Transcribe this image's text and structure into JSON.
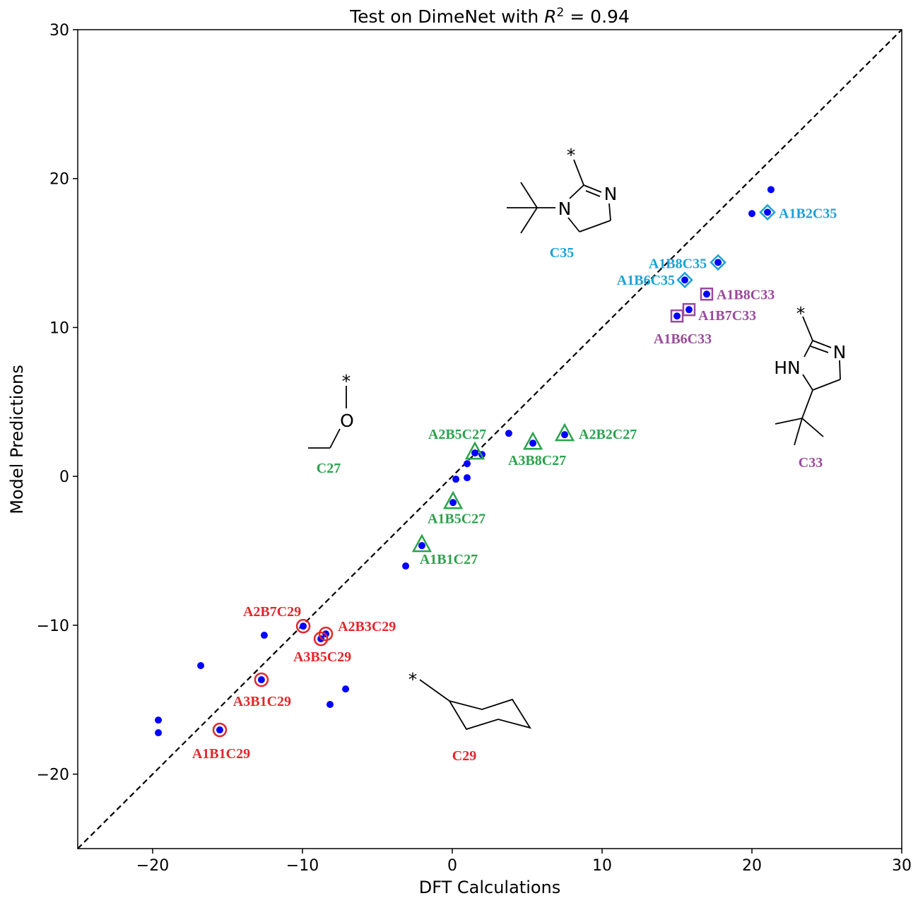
{
  "chart_data": {
    "type": "scatter",
    "title": "Test on DimeNet with R² =  0.94",
    "title_parts": {
      "prefix": "Test on DimeNet with ",
      "var": "R",
      "sup": "2",
      "suffix": " =  0.94"
    },
    "xlabel": "DFT Calculations",
    "ylabel": "Model Predictions",
    "xlim": [
      -25,
      30
    ],
    "ylim": [
      -25,
      30
    ],
    "xticks": [
      -20,
      -10,
      0,
      10,
      20,
      30
    ],
    "yticks": [
      -20,
      -10,
      0,
      10,
      20,
      30
    ],
    "grid": false,
    "reference_line": {
      "type": "y=x",
      "style": "dashed",
      "color": "#000000"
    },
    "point_color": "#0000ff",
    "points": [
      [
        21.27,
        19.26
      ],
      [
        20.0,
        17.65
      ],
      [
        21.04,
        17.74
      ],
      [
        17.74,
        14.37
      ],
      [
        15.52,
        13.19
      ],
      [
        16.98,
        12.24
      ],
      [
        15.8,
        11.2
      ],
      [
        15.0,
        10.77
      ],
      [
        3.77,
        2.89
      ],
      [
        5.38,
        2.23
      ],
      [
        7.5,
        2.8
      ],
      [
        1.51,
        1.57
      ],
      [
        1.98,
        1.47
      ],
      [
        0.99,
        0.85
      ],
      [
        0.99,
        -0.09
      ],
      [
        0.24,
        -0.19
      ],
      [
        0.05,
        -1.76
      ],
      [
        -2.03,
        -4.65
      ],
      [
        -3.11,
        -6.02
      ],
      [
        -12.55,
        -10.67
      ],
      [
        -9.95,
        -10.06
      ],
      [
        -8.44,
        -10.58
      ],
      [
        -8.77,
        -10.91
      ],
      [
        -7.12,
        -14.28
      ],
      [
        -8.16,
        -15.32
      ],
      [
        -12.74,
        -13.66
      ],
      [
        -16.79,
        -12.71
      ],
      [
        -19.62,
        -16.37
      ],
      [
        -19.62,
        -17.22
      ],
      [
        -15.52,
        -17.03
      ]
    ],
    "annotations": [
      {
        "text": "A1B2C35",
        "x": 21.04,
        "y": 17.74,
        "marker": "diamond",
        "color": "#1ba1d6"
      },
      {
        "text": "A1B8C35",
        "x": 17.74,
        "y": 14.37,
        "marker": "diamond",
        "color": "#1ba1d6"
      },
      {
        "text": "A1B6C35",
        "x": 15.52,
        "y": 13.19,
        "marker": "diamond",
        "color": "#1ba1d6"
      },
      {
        "text": "A1B8C33",
        "x": 16.98,
        "y": 12.24,
        "marker": "square",
        "color": "#9a4a9c"
      },
      {
        "text": "A1B7C33",
        "x": 15.8,
        "y": 11.2,
        "marker": "square",
        "color": "#9a4a9c"
      },
      {
        "text": "A1B6C33",
        "x": 15.0,
        "y": 10.77,
        "marker": "square",
        "color": "#9a4a9c"
      },
      {
        "text": "A2B5C27",
        "x": 1.51,
        "y": 1.57,
        "marker": "triangle",
        "color": "#2ba24c"
      },
      {
        "text": "A3B8C27",
        "x": 5.38,
        "y": 2.23,
        "marker": "triangle",
        "color": "#2ba24c"
      },
      {
        "text": "A2B2C27",
        "x": 7.5,
        "y": 2.8,
        "marker": "triangle",
        "color": "#2ba24c"
      },
      {
        "text": "A1B5C27",
        "x": 0.05,
        "y": -1.76,
        "marker": "triangle",
        "color": "#2ba24c"
      },
      {
        "text": "A1B1C27",
        "x": -2.03,
        "y": -4.65,
        "marker": "triangle",
        "color": "#2ba24c"
      },
      {
        "text": "A2B7C29",
        "x": -9.95,
        "y": -10.06,
        "marker": "circle",
        "color": "#e3262b"
      },
      {
        "text": "A2B3C29",
        "x": -8.44,
        "y": -10.58,
        "marker": "circle",
        "color": "#e3262b"
      },
      {
        "text": "A3B5C29",
        "x": -8.77,
        "y": -10.91,
        "marker": "circle",
        "color": "#e3262b"
      },
      {
        "text": "A3B1C29",
        "x": -12.74,
        "y": -13.66,
        "marker": "circle",
        "color": "#e3262b"
      },
      {
        "text": "A1B1C29",
        "x": -15.52,
        "y": -17.03,
        "marker": "circle",
        "color": "#e3262b"
      }
    ],
    "structures": {
      "c35": {
        "label": "C35",
        "color": "#1ba1d6",
        "atoms": {
          "n1": "N",
          "n3": "N",
          "star": "*"
        }
      },
      "c27": {
        "label": "C27",
        "color": "#2ba24c",
        "atoms": {
          "o": "O",
          "star": "*"
        }
      },
      "c29": {
        "label": "C29",
        "color": "#e3262b",
        "atoms": {
          "star": "*"
        }
      },
      "c33": {
        "label": "C33",
        "color": "#9a4a9c",
        "atoms": {
          "hn": "HN",
          "n3": "N",
          "star": "*"
        }
      }
    }
  }
}
